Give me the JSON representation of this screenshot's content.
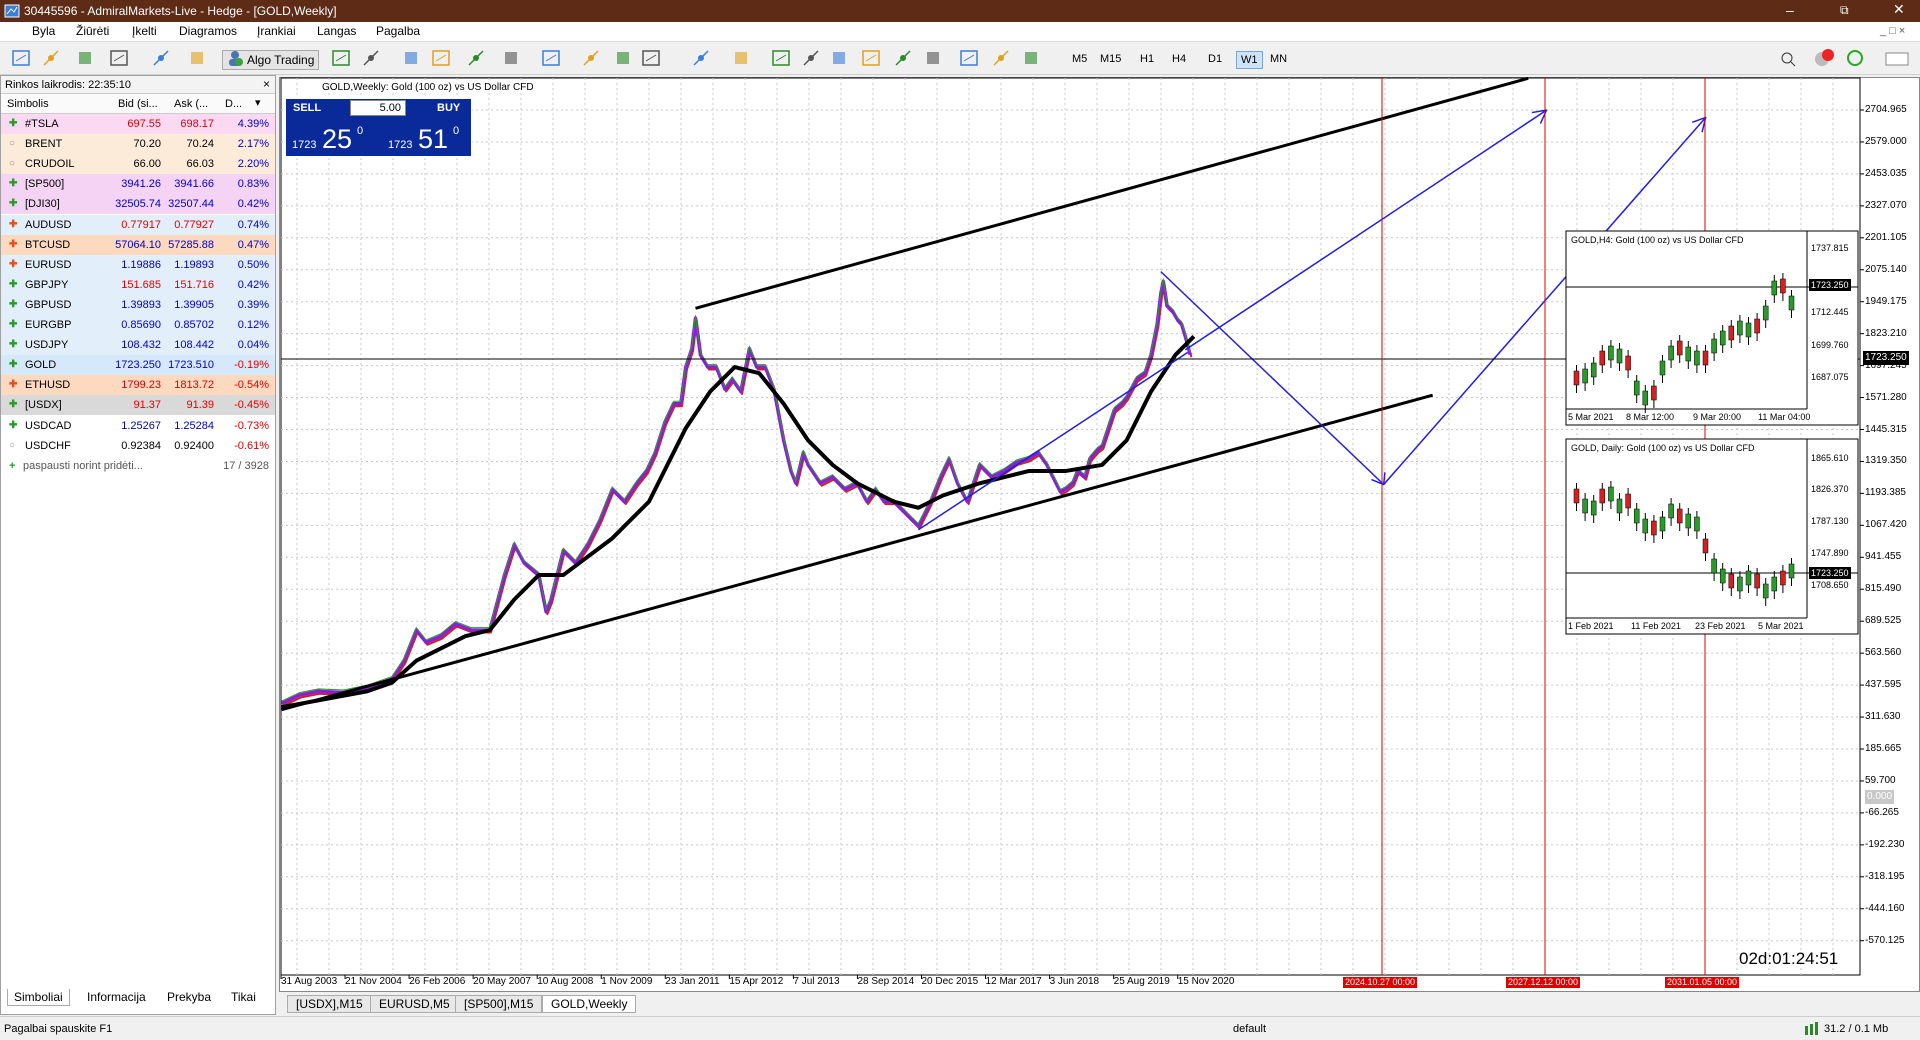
{
  "window": {
    "title": "30445596 - AdmiralMarkets-Live - Hedge - [GOLD,Weekly]"
  },
  "menu": [
    "Byla",
    "Žiūrėti",
    "Įkelti",
    "Diagramos",
    "Įrankiai",
    "Langas",
    "Pagalba"
  ],
  "toolbar": {
    "algo": "Algo Trading",
    "timeframes": [
      "M5",
      "M15",
      "H1",
      "H4",
      "D1",
      "W1",
      "MN"
    ],
    "active_timeframe": "W1"
  },
  "market_watch": {
    "title": "Rinkos laikrodis: 22:35:10",
    "columns": [
      "Simbolis",
      "Bid (si...",
      "Ask (...",
      "D..."
    ],
    "rows": [
      {
        "symbol": "#TSLA",
        "bid": "697.55",
        "ask": "698.17",
        "change": "4.39%",
        "bg": "#fbd9f3",
        "up": true
      },
      {
        "symbol": "BRENT",
        "bid": "70.20",
        "ask": "70.24",
        "change": "2.17%",
        "bg": "#fdebd9",
        "up": null
      },
      {
        "symbol": "CRUDOIL",
        "bid": "66.00",
        "ask": "66.03",
        "change": "2.20%",
        "bg": "#fdebd9",
        "up": null
      },
      {
        "symbol": "[SP500]",
        "bid": "3941.26",
        "ask": "3941.66",
        "change": "0.83%",
        "bg": "#f4d3f4",
        "up": true
      },
      {
        "symbol": "[DJI30]",
        "bid": "32505.74",
        "ask": "32507.44",
        "change": "0.42%",
        "bg": "#f4d3f4",
        "up": true
      },
      {
        "symbol": "AUDUSD",
        "bid": "0.77917",
        "ask": "0.77927",
        "change": "0.74%",
        "bg": "#e3eefb",
        "up": false
      },
      {
        "symbol": "BTCUSD",
        "bid": "57064.10",
        "ask": "57285.88",
        "change": "0.47%",
        "bg": "#fcd9bf",
        "up": false
      },
      {
        "symbol": "EURUSD",
        "bid": "1.19886",
        "ask": "1.19893",
        "change": "0.50%",
        "bg": "#e3eefb",
        "up": false
      },
      {
        "symbol": "GBPJPY",
        "bid": "151.685",
        "ask": "151.716",
        "change": "0.42%",
        "bg": "#e3eefb",
        "up": true
      },
      {
        "symbol": "GBPUSD",
        "bid": "1.39893",
        "ask": "1.39905",
        "change": "0.39%",
        "bg": "#e3eefb",
        "up": true
      },
      {
        "symbol": "EURGBP",
        "bid": "0.85690",
        "ask": "0.85702",
        "change": "0.12%",
        "bg": "#e3eefb",
        "up": true
      },
      {
        "symbol": "USDJPY",
        "bid": "108.432",
        "ask": "108.442",
        "change": "0.04%",
        "bg": "#e3eefb",
        "up": true
      },
      {
        "symbol": "GOLD",
        "bid": "1723.250",
        "ask": "1723.510",
        "change": "-0.19%",
        "bg": "#d6e9fb",
        "up": true
      },
      {
        "symbol": "ETHUSD",
        "bid": "1799.23",
        "ask": "1813.72",
        "change": "-0.54%",
        "bg": "#fcd9bf",
        "up": false
      },
      {
        "symbol": "[USDX]",
        "bid": "91.37",
        "ask": "91.39",
        "change": "-0.45%",
        "bg": "#d9d9d9",
        "up": true
      },
      {
        "symbol": "USDCAD",
        "bid": "1.25267",
        "ask": "1.25284",
        "change": "-0.73%",
        "bg": "#ffffff",
        "up": true
      },
      {
        "symbol": "USDCHF",
        "bid": "0.92384",
        "ask": "0.92400",
        "change": "-0.61%",
        "bg": "#ffffff",
        "up": null
      }
    ],
    "add_hint": "paspausti norint pridėti...",
    "count": "17 / 3928",
    "tabs": [
      "Simboliai",
      "Informacija",
      "Prekyba",
      "Tikai"
    ]
  },
  "chart": {
    "title": "GOLD,Weekly:  Gold (100 oz) vs US Dollar CFD",
    "trade": {
      "sell": "SELL",
      "buy": "BUY",
      "volume": "5.00",
      "sell_big": "1723",
      "sell_main": "25",
      "sell_sup": "0",
      "buy_big": "1723",
      "buy_main": "51",
      "buy_sup": "0"
    },
    "price_labels": [
      "2704.965",
      "2579.000",
      "2453.035",
      "2327.070",
      "2201.105",
      "2075.140",
      "1949.175",
      "1823.210",
      "1697.245",
      "1571.280",
      "1445.315",
      "1319.350",
      "1193.385",
      "1067.420",
      "941.455",
      "815.490",
      "689.525",
      "563.560",
      "437.595",
      "311.630",
      "185.665",
      "59.700",
      "-66.265",
      "-192.230",
      "-318.195",
      "-444.160",
      "-570.125"
    ],
    "current_price": "1723.250",
    "zero_label": "0.000",
    "date_labels": [
      "31 Aug 2003",
      "21 Nov 2004",
      "26 Feb 2006",
      "20 May 2007",
      "10 Aug 2008",
      "1 Nov 2009",
      "23 Jan 2011",
      "15 Apr 2012",
      "7 Jul 2013",
      "28 Sep 2014",
      "20 Dec 2015",
      "12 Mar 2017",
      "3 Jun 2018",
      "25 Aug 2019",
      "15 Nov 2020"
    ],
    "future_dates": [
      "2024.10.27 00:00",
      "2027.12.12 00:00",
      "2031.01.05 00:00"
    ],
    "timer": "02d:01:24:51",
    "h4": {
      "title": "GOLD,H4:  Gold (100 oz) vs US Dollar CFD",
      "prices": [
        "1737.815",
        "1712.445",
        "1699.760",
        "1687.075"
      ],
      "current": "1723.250",
      "dates": [
        "5 Mar 2021",
        "8 Mar 12:00",
        "9 Mar 20:00",
        "11 Mar 04:00"
      ]
    },
    "daily": {
      "title": "GOLD, Daily:  Gold (100 oz) vs US Dollar CFD",
      "prices": [
        "1865.610",
        "1826.370",
        "1787.130",
        "1747.890",
        "1708.650"
      ],
      "current": "1723.250",
      "dates": [
        "1 Feb 2021",
        "11 Feb 2021",
        "23 Feb 2021",
        "5 Mar 2021"
      ]
    }
  },
  "chart_tabs": [
    "[USDX],M15",
    "EURUSD,M5",
    "[SP500],M15",
    "GOLD,Weekly"
  ],
  "status": {
    "help": "Pagalbai spauskite F1",
    "profile": "default",
    "memory": "31.2 / 0.1 Mb"
  }
}
